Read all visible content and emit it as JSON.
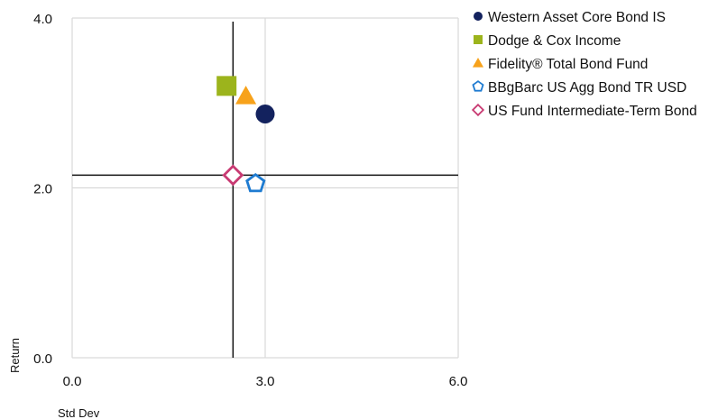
{
  "chart_data": {
    "type": "scatter",
    "xlabel": "Std Dev",
    "ylabel": "Return",
    "xlim": [
      0,
      6
    ],
    "ylim": [
      0,
      4
    ],
    "x_ticks": [
      {
        "value": 0,
        "label": "0.0"
      },
      {
        "value": 3,
        "label": "3.0"
      },
      {
        "value": 6,
        "label": "6.0"
      }
    ],
    "y_ticks": [
      {
        "value": 0,
        "label": "0.0"
      },
      {
        "value": 2,
        "label": "2.0"
      },
      {
        "value": 4,
        "label": "4.0"
      }
    ],
    "grid": true,
    "legend_position": "right",
    "reference_lines": {
      "x": 2.5,
      "y": 2.15
    },
    "series": [
      {
        "name": "Western Asset Core Bond IS",
        "marker": "circle",
        "color": "#13225e",
        "filled": true,
        "x": 3.0,
        "y": 2.87
      },
      {
        "name": "Dodge & Cox Income",
        "marker": "square",
        "color": "#9cb41c",
        "filled": true,
        "x": 2.4,
        "y": 3.2
      },
      {
        "name": "Fidelity® Total Bond Fund",
        "marker": "triangle",
        "color": "#f7a21b",
        "filled": true,
        "x": 2.7,
        "y": 3.08
      },
      {
        "name": "BBgBarc US Agg Bond TR USD",
        "marker": "pentagon",
        "color": "#1e7bd1",
        "filled": false,
        "x": 2.85,
        "y": 2.05
      },
      {
        "name": "US Fund Intermediate-Term Bond",
        "marker": "diamond",
        "color": "#c83a72",
        "filled": false,
        "x": 2.5,
        "y": 2.15
      }
    ]
  }
}
